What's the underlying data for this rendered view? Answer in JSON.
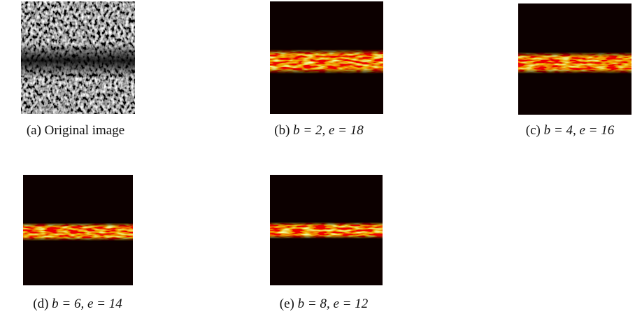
{
  "subfigures": [
    {
      "label": "(a)",
      "caption": "Original image"
    },
    {
      "label": "(b)",
      "caption": "b = 2, e = 18"
    },
    {
      "label": "(c)",
      "caption": "b = 4, e = 16"
    },
    {
      "label": "(d)",
      "caption": "b = 6, e = 14"
    },
    {
      "label": "(e)",
      "caption": "b = 8, e = 12"
    }
  ]
}
